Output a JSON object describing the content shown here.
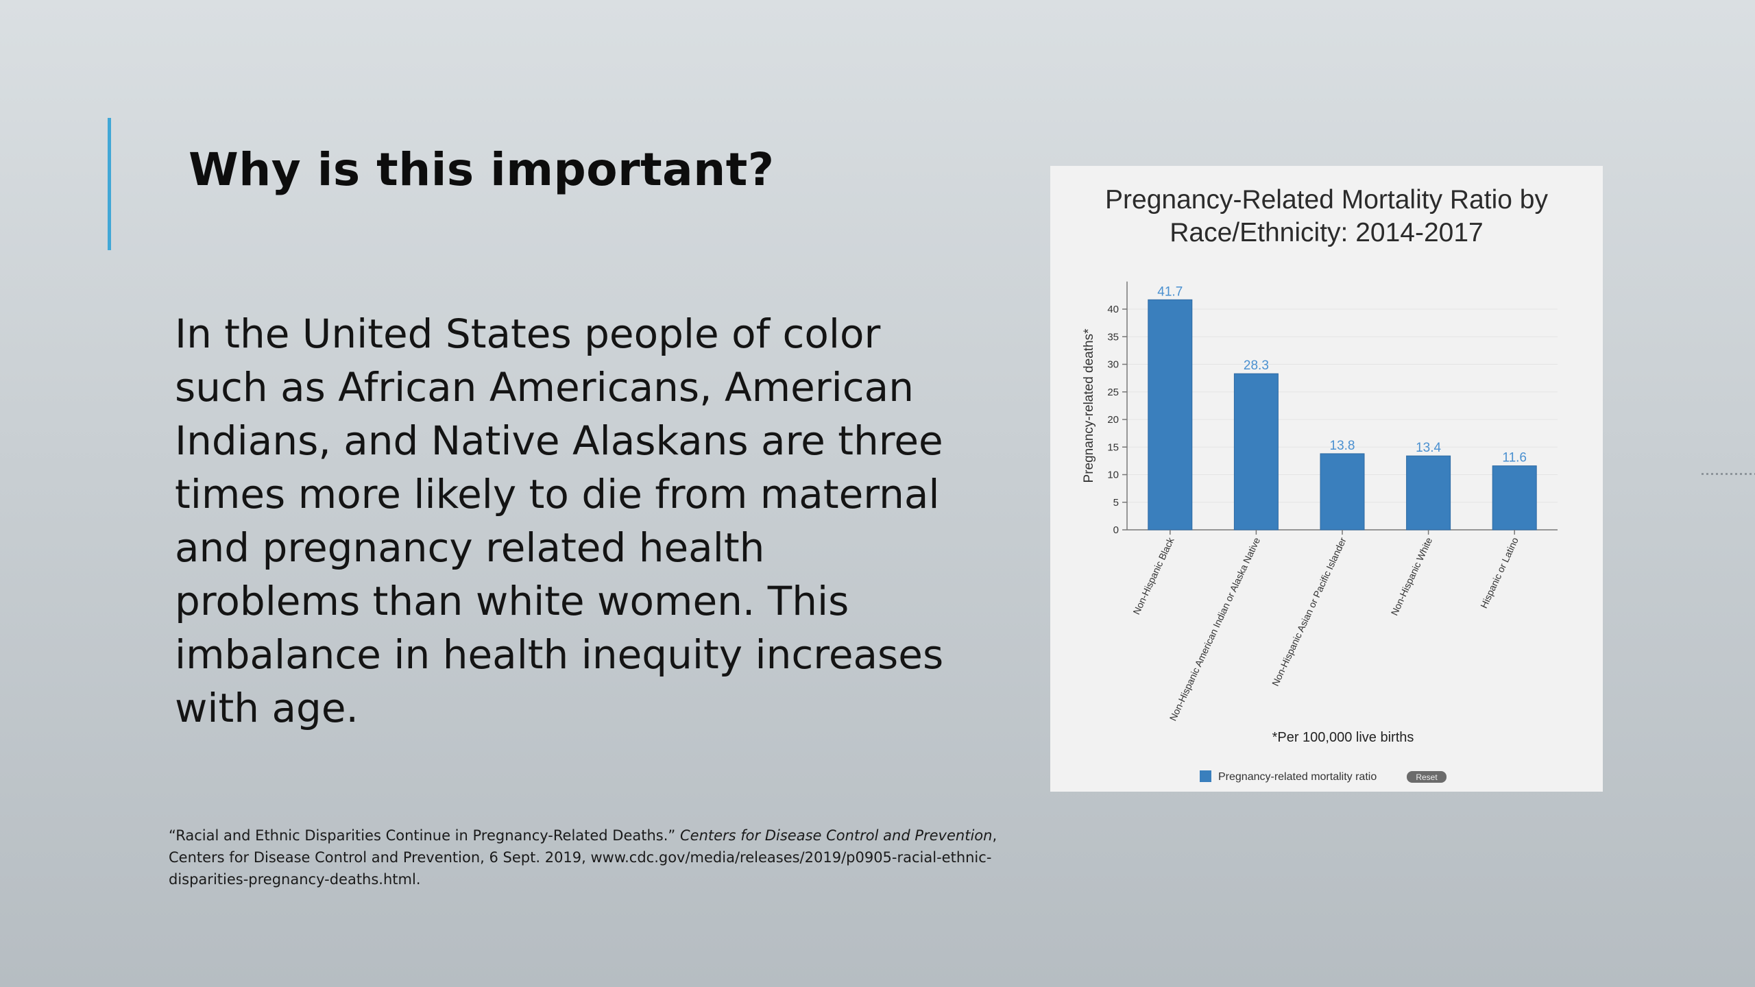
{
  "slide": {
    "title": "Why is this important?",
    "body": "In the United States people of color\nsuch as African Americans, American\nIndians, and Native Alaskans are three\ntimes more likely to die from maternal\nand pregnancy related health\nproblems than white women.  This\nimbalance in health inequity increases\nwith age.",
    "citation_part1": "“Racial and Ethnic Disparities Continue in Pregnancy-Related Deaths.” ",
    "citation_source": "Centers for Disease Control and Prevention",
    "citation_part2": ", Centers for Disease Control and Prevention, 6 Sept. 2019, www.cdc.gov/media/releases/2019/p0905-racial-ethnic-disparities-pregnancy-deaths.html."
  },
  "colors": {
    "accent": "#41a7d6",
    "bar": "#3a7fbd",
    "bar_label": "#4a90d0"
  },
  "chart_data": {
    "type": "bar",
    "title_line1": "Pregnancy-Related Mortality Ratio by",
    "title_line2": "Race/Ethnicity: 2014-2017",
    "categories": [
      "Non-Hispanic Black",
      "Non-Hispanic American Indian or Alaska Native",
      "Non-Hispanic Asian or Pacific Islander",
      "Non-Hispanic White",
      "Hispanic or Latino"
    ],
    "series": [
      {
        "name": "Pregnancy-related mortality ratio",
        "values": [
          41.7,
          28.3,
          13.8,
          13.4,
          11.6
        ]
      }
    ],
    "value_labels": [
      "41.7",
      "28.3",
      "13.8",
      "13.4",
      "11.6"
    ],
    "ylabel": "Pregnancy-related deaths*",
    "xlabel": "*Per 100,000 live births",
    "yticks": [
      0,
      5,
      10,
      15,
      20,
      25,
      30,
      35,
      40
    ],
    "ylim": [
      0,
      45
    ],
    "grid": true,
    "legend_position": "bottom",
    "legend_label": "Pregnancy-related mortality ratio",
    "reset_label": "Reset"
  }
}
